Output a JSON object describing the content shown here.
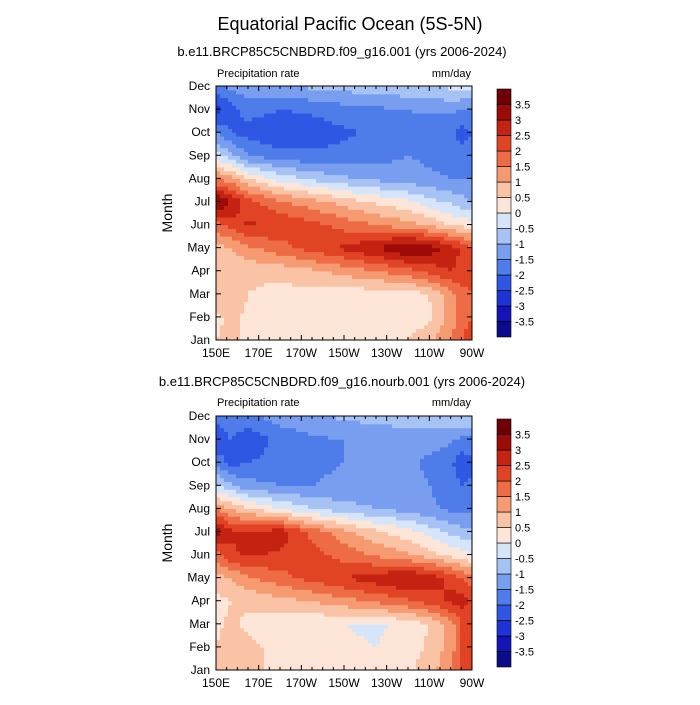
{
  "title": "Equatorial Pacific Ocean (5S-5N)",
  "chart_data": [
    {
      "type": "heatmap",
      "subtitle": "b.e11.BRCP85C5CNBDRD.f09_g16.001 (yrs 2006-2024)",
      "left_label": "Precipitation rate",
      "right_label": "mm/day",
      "ylabel": "Month",
      "x_ticks": [
        "150E",
        "170E",
        "170W",
        "150W",
        "130W",
        "110W",
        "90W"
      ],
      "y_ticks": [
        "Jan",
        "Feb",
        "Mar",
        "Apr",
        "May",
        "Jun",
        "Jul",
        "Aug",
        "Sep",
        "Oct",
        "Nov",
        "Dec"
      ],
      "x_range_deg_east": [
        150,
        270
      ],
      "levels": [
        -3.5,
        -3,
        -2.5,
        -2,
        -1.5,
        -1,
        -0.5,
        0,
        0.5,
        1,
        1.5,
        2,
        2.5,
        3,
        3.5
      ],
      "colorbar_labels": [
        "3.5",
        "3",
        "2.5",
        "2",
        "1.5",
        "1",
        "0.5",
        "0",
        "-0.5",
        "-1",
        "-1.5",
        "-2",
        "-2.5",
        "-3",
        "-3.5"
      ],
      "lon_nodes": [
        150,
        157,
        165,
        180,
        195,
        210,
        225,
        240,
        250,
        260,
        265,
        270
      ],
      "grid": [
        [
          0.5,
          0.6,
          0.4,
          0.2,
          0.2,
          0.3,
          0.3,
          0.5,
          0.9,
          1.5,
          2.0,
          2.2
        ],
        [
          0.4,
          0.6,
          0.4,
          0.3,
          0.2,
          0.1,
          0.1,
          0.1,
          0.4,
          1.2,
          1.8,
          2.0
        ],
        [
          0.9,
          0.8,
          0.5,
          0.3,
          0.3,
          0.2,
          0.2,
          0.2,
          0.5,
          1.3,
          1.8,
          2.0
        ],
        [
          0.6,
          0.5,
          0.6,
          0.7,
          0.9,
          1.2,
          1.5,
          1.8,
          2.2,
          2.5,
          2.4,
          2.2
        ],
        [
          0.8,
          1.0,
          1.4,
          1.8,
          2.2,
          2.6,
          3.0,
          3.6,
          3.3,
          2.8,
          2.4,
          2.0
        ],
        [
          1.8,
          2.2,
          2.6,
          2.4,
          2.2,
          1.8,
          1.5,
          1.2,
          0.9,
          0.5,
          0.4,
          0.2
        ],
        [
          3.6,
          3.0,
          2.2,
          1.6,
          1.2,
          0.8,
          0.4,
          0.1,
          -0.3,
          -0.6,
          -0.8,
          -1.0
        ],
        [
          1.5,
          1.2,
          0.5,
          -0.2,
          -0.6,
          -0.9,
          -1.1,
          -1.3,
          -1.4,
          -1.5,
          -1.5,
          -1.5
        ],
        [
          -0.3,
          -0.8,
          -1.5,
          -1.8,
          -1.9,
          -1.8,
          -1.7,
          -1.5,
          -1.6,
          -1.7,
          -1.8,
          -1.8
        ],
        [
          -1.5,
          -2.0,
          -2.2,
          -2.4,
          -2.3,
          -2.1,
          -1.9,
          -1.7,
          -1.8,
          -1.9,
          -2.2,
          -2.0
        ],
        [
          -2.8,
          -2.2,
          -1.8,
          -2.0,
          -1.9,
          -1.7,
          -1.6,
          -1.5,
          -1.4,
          -1.4,
          -1.5,
          -1.6
        ],
        [
          -1.6,
          -1.4,
          -1.2,
          -1.0,
          -0.9,
          -0.8,
          -0.7,
          -0.6,
          -0.5,
          -0.4,
          -0.3,
          -0.2
        ]
      ]
    },
    {
      "type": "heatmap",
      "subtitle": "b.e11.BRCP85C5CNBDRD.f09_g16.nourb.001 (yrs 2006-2024)",
      "left_label": "Precipitation rate",
      "right_label": "mm/day",
      "ylabel": "Month",
      "x_ticks": [
        "150E",
        "170E",
        "170W",
        "150W",
        "130W",
        "110W",
        "90W"
      ],
      "y_ticks": [
        "Jan",
        "Feb",
        "Mar",
        "Apr",
        "May",
        "Jun",
        "Jul",
        "Aug",
        "Sep",
        "Oct",
        "Nov",
        "Dec"
      ],
      "x_range_deg_east": [
        150,
        270
      ],
      "levels": [
        -3.5,
        -3,
        -2.5,
        -2,
        -1.5,
        -1,
        -0.5,
        0,
        0.5,
        1,
        1.5,
        2,
        2.5,
        3,
        3.5
      ],
      "colorbar_labels": [
        "3.5",
        "3",
        "2.5",
        "2",
        "1.5",
        "1",
        "0.5",
        "0",
        "-0.5",
        "-1",
        "-1.5",
        "-2",
        "-2.5",
        "-3",
        "-3.5"
      ],
      "lon_nodes": [
        150,
        157,
        165,
        180,
        195,
        210,
        225,
        240,
        250,
        260,
        265,
        270
      ],
      "grid": [
        [
          0.6,
          0.7,
          0.6,
          0.4,
          0.2,
          0.1,
          0.2,
          0.4,
          0.8,
          1.4,
          2.2,
          2.4
        ],
        [
          0.5,
          0.8,
          0.6,
          0.4,
          0.2,
          0.1,
          0.0,
          0.2,
          0.6,
          1.2,
          2.0,
          2.2
        ],
        [
          0.4,
          0.6,
          0.4,
          0.2,
          0.1,
          0.0,
          -0.1,
          0.2,
          0.5,
          1.2,
          2.0,
          2.2
        ],
        [
          0.3,
          0.5,
          0.6,
          0.8,
          1.0,
          1.3,
          1.6,
          1.9,
          2.2,
          2.6,
          2.8,
          2.4
        ],
        [
          0.8,
          1.0,
          1.4,
          1.8,
          2.2,
          2.5,
          2.8,
          3.1,
          2.8,
          2.4,
          2.0,
          1.8
        ],
        [
          1.8,
          2.4,
          2.6,
          2.4,
          2.2,
          1.8,
          1.4,
          1.1,
          0.7,
          0.4,
          0.2,
          0.0
        ],
        [
          3.4,
          2.6,
          2.5,
          2.8,
          1.8,
          1.2,
          0.6,
          0.2,
          -0.2,
          -0.6,
          -0.8,
          -0.8
        ],
        [
          1.4,
          1.0,
          0.6,
          0.0,
          -0.5,
          -0.8,
          -1.0,
          -1.2,
          -1.4,
          -1.6,
          -1.7,
          -1.7
        ],
        [
          -0.4,
          -0.9,
          -1.3,
          -1.5,
          -1.5,
          -1.4,
          -1.3,
          -1.3,
          -1.5,
          -1.7,
          -2.0,
          -1.9
        ],
        [
          -1.6,
          -2.2,
          -2.0,
          -1.8,
          -1.6,
          -1.5,
          -1.4,
          -1.4,
          -1.6,
          -1.9,
          -2.3,
          -2.1
        ],
        [
          -2.6,
          -2.0,
          -2.4,
          -1.8,
          -1.6,
          -1.5,
          -1.4,
          -1.3,
          -1.3,
          -1.4,
          -1.6,
          -1.7
        ],
        [
          -1.7,
          -1.5,
          -1.6,
          -1.3,
          -1.1,
          -0.9,
          -0.8,
          -0.7,
          -0.6,
          -0.6,
          -0.5,
          -0.4
        ]
      ]
    }
  ],
  "colors": {
    "palette": [
      "#0b0c8a",
      "#1214b8",
      "#1c33d8",
      "#2f57e3",
      "#4e7ce8",
      "#799eef",
      "#a7c3f5",
      "#d6e5fa",
      "#fde6d8",
      "#fbc3a5",
      "#f69a72",
      "#ee6c45",
      "#e04424",
      "#c42312",
      "#9c0b08",
      "#6f0003"
    ]
  }
}
